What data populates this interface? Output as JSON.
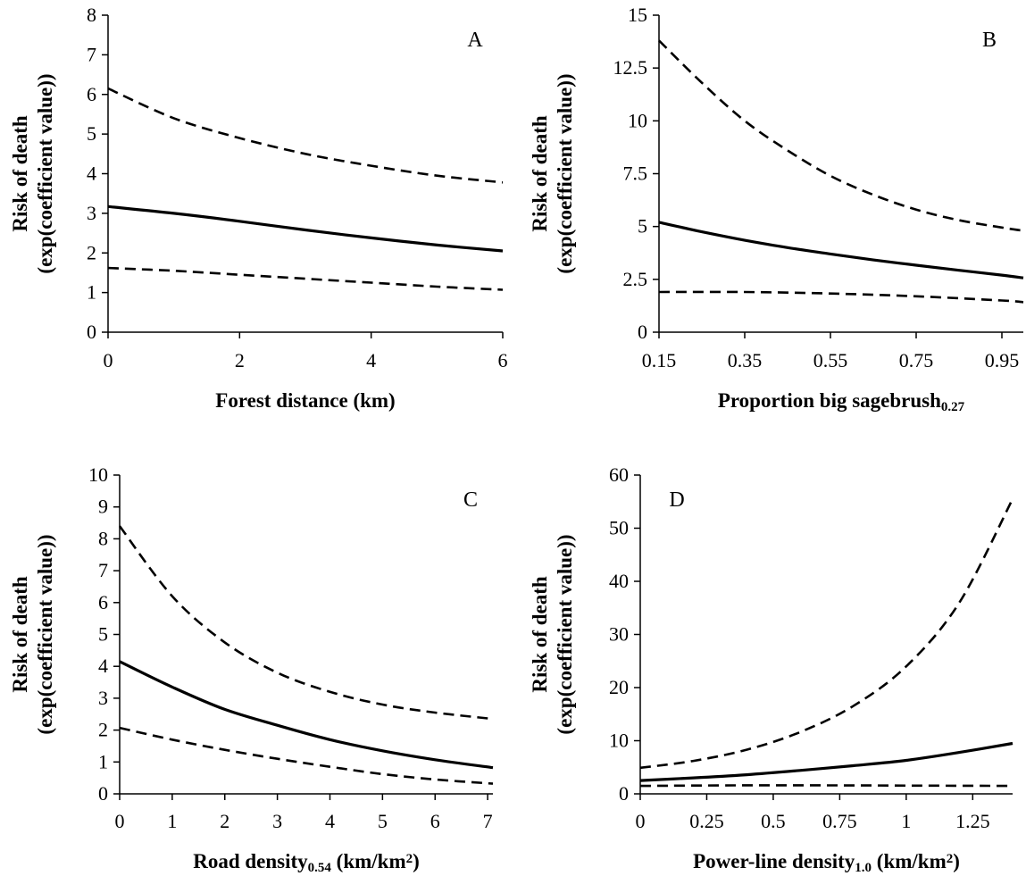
{
  "chart_data": [
    {
      "type": "line",
      "panel": "A",
      "xlabel": "Forest distance (km)",
      "xlabel_parts": [
        {
          "text": "Forest distance (km)"
        }
      ],
      "ylabel": [
        "Risk of death",
        "(exp(coefficient value))"
      ],
      "xlim": [
        0,
        6
      ],
      "ylim": [
        0,
        8
      ],
      "x_ticks": [
        0,
        2,
        4,
        6
      ],
      "x_tick_labels": [
        "0",
        "2",
        "4",
        "6"
      ],
      "y_ticks": [
        0,
        1,
        2,
        3,
        4,
        5,
        6,
        7,
        8
      ],
      "y_tick_labels": [
        "0",
        "1",
        "2",
        "3",
        "4",
        "5",
        "6",
        "7",
        "8"
      ],
      "series": [
        {
          "style": "dashed",
          "x": [
            0,
            1,
            2,
            3,
            4,
            5,
            6
          ],
          "values": [
            6.15,
            5.4,
            4.9,
            4.5,
            4.2,
            3.95,
            3.78
          ]
        },
        {
          "style": "solid",
          "x": [
            0,
            1,
            2,
            3,
            4,
            5,
            6
          ],
          "values": [
            3.17,
            3.0,
            2.8,
            2.58,
            2.38,
            2.2,
            2.05
          ]
        },
        {
          "style": "dashed",
          "x": [
            0,
            1,
            2,
            3,
            4,
            5,
            6
          ],
          "values": [
            1.62,
            1.55,
            1.45,
            1.35,
            1.25,
            1.15,
            1.07
          ]
        }
      ]
    },
    {
      "type": "line",
      "panel": "B",
      "xlabel": "Proportion big sagebrush0.27",
      "xlabel_parts": [
        {
          "text": "Proportion big sagebrush"
        },
        {
          "text": "0.27",
          "sub": true
        }
      ],
      "ylabel": [
        "Risk of death",
        "(exp(coefficient value))"
      ],
      "xlim": [
        0.15,
        1.0
      ],
      "ylim": [
        0,
        15
      ],
      "x_ticks": [
        0.15,
        0.35,
        0.55,
        0.75,
        0.95
      ],
      "x_tick_labels": [
        "0.15",
        "0.35",
        "0.55",
        "0.75",
        "0.95"
      ],
      "y_ticks": [
        0,
        2.5,
        5,
        7.5,
        10,
        12.5,
        15
      ],
      "y_tick_labels": [
        "0",
        "2.5",
        "5",
        "7.5",
        "10",
        "12.5",
        "15"
      ],
      "series": [
        {
          "style": "dashed",
          "x": [
            0.15,
            0.25,
            0.35,
            0.45,
            0.55,
            0.65,
            0.75,
            0.85,
            0.95,
            1.0
          ],
          "values": [
            13.8,
            11.8,
            10.0,
            8.6,
            7.4,
            6.5,
            5.8,
            5.3,
            4.95,
            4.8
          ]
        },
        {
          "style": "solid",
          "x": [
            0.15,
            0.25,
            0.35,
            0.45,
            0.55,
            0.65,
            0.75,
            0.85,
            0.95,
            1.0
          ],
          "values": [
            5.2,
            4.75,
            4.35,
            4.0,
            3.7,
            3.42,
            3.17,
            2.93,
            2.7,
            2.57
          ]
        },
        {
          "style": "dashed",
          "x": [
            0.15,
            0.35,
            0.55,
            0.75,
            0.95,
            1.0
          ],
          "values": [
            1.9,
            1.9,
            1.83,
            1.7,
            1.5,
            1.42
          ]
        }
      ]
    },
    {
      "type": "line",
      "panel": "C",
      "xlabel": "Road density0.54 (km/km2)",
      "xlabel_parts": [
        {
          "text": "Road density"
        },
        {
          "text": "0.54",
          "sub": true
        },
        {
          "text": " (km/km"
        },
        {
          "text": "2",
          "sup": true
        },
        {
          "text": ")"
        }
      ],
      "ylabel": [
        "Risk of death",
        "(exp(coefficient value))"
      ],
      "xlim": [
        0,
        7.1
      ],
      "ylim": [
        0,
        10
      ],
      "x_ticks": [
        0,
        1,
        2,
        3,
        4,
        5,
        6,
        7
      ],
      "x_tick_labels": [
        "0",
        "1",
        "2",
        "3",
        "4",
        "5",
        "6",
        "7"
      ],
      "y_ticks": [
        0,
        1,
        2,
        3,
        4,
        5,
        6,
        7,
        8,
        9,
        10
      ],
      "y_tick_labels": [
        "0",
        "1",
        "2",
        "3",
        "4",
        "5",
        "6",
        "7",
        "8",
        "9",
        "10"
      ],
      "series": [
        {
          "style": "dashed",
          "x": [
            0,
            1,
            2,
            3,
            4,
            5,
            6,
            7.1
          ],
          "values": [
            8.4,
            6.2,
            4.75,
            3.8,
            3.2,
            2.8,
            2.55,
            2.35
          ]
        },
        {
          "style": "solid",
          "x": [
            0,
            1,
            2,
            3,
            4,
            5,
            6,
            7.1
          ],
          "values": [
            4.15,
            3.35,
            2.65,
            2.15,
            1.7,
            1.35,
            1.07,
            0.82
          ]
        },
        {
          "style": "dashed",
          "x": [
            0,
            1,
            2,
            3,
            4,
            5,
            6,
            7.1
          ],
          "values": [
            2.07,
            1.7,
            1.38,
            1.1,
            0.85,
            0.62,
            0.45,
            0.32
          ]
        }
      ]
    },
    {
      "type": "line",
      "panel": "D",
      "xlabel": "Power-line density1.0 (km/km2)",
      "xlabel_parts": [
        {
          "text": "Power-line density"
        },
        {
          "text": "1.0",
          "sub": true
        },
        {
          "text": " (km/km"
        },
        {
          "text": "2",
          "sup": true
        },
        {
          "text": ")"
        }
      ],
      "ylabel": [
        "Risk of death",
        "(exp(coefficient value))"
      ],
      "xlim": [
        0,
        1.4
      ],
      "ylim": [
        0,
        60
      ],
      "x_ticks": [
        0,
        0.25,
        0.5,
        0.75,
        1,
        1.25
      ],
      "x_tick_labels": [
        "0",
        "0.25",
        "0.5",
        "0.75",
        "1",
        "1.25"
      ],
      "y_ticks": [
        0,
        10,
        20,
        30,
        40,
        50,
        60
      ],
      "y_tick_labels": [
        "0",
        "10",
        "20",
        "30",
        "40",
        "50",
        "60"
      ],
      "series": [
        {
          "style": "dashed",
          "x": [
            0,
            0.2,
            0.4,
            0.6,
            0.8,
            1.0,
            1.2,
            1.4
          ],
          "values": [
            4.9,
            6.2,
            8.3,
            11.6,
            16.5,
            24,
            36,
            55.5
          ]
        },
        {
          "style": "solid",
          "x": [
            0,
            0.2,
            0.4,
            0.6,
            0.8,
            1.0,
            1.2,
            1.4
          ],
          "values": [
            2.5,
            3.0,
            3.6,
            4.4,
            5.3,
            6.3,
            7.8,
            9.5
          ]
        },
        {
          "style": "dashed",
          "x": [
            0,
            0.35,
            0.7,
            1.05,
            1.4
          ],
          "values": [
            1.5,
            1.6,
            1.6,
            1.55,
            1.5
          ]
        }
      ]
    }
  ]
}
